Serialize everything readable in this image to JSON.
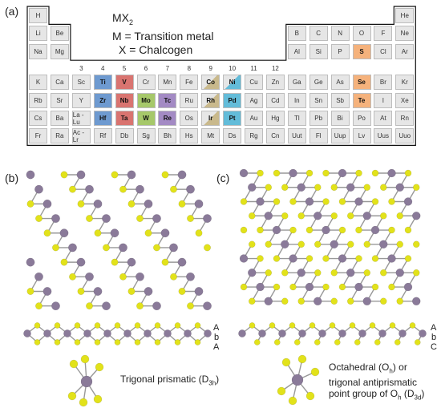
{
  "panels": {
    "a": "(a)",
    "b": "(b)",
    "c": "(c)"
  },
  "legend": {
    "formula": "MX",
    "formula_sub": "2",
    "metal": "M = Transition metal",
    "chalcogen": "X = Chalcogen"
  },
  "colors": {
    "cell_bg": "#e6e6e6",
    "group4": "#6e9ad0",
    "group5": "#d97470",
    "group6": "#a6c86a",
    "group7": "#a38ac4",
    "group9": "#c9b98c",
    "group10": "#63bcd9",
    "chalcogen": "#f5b27c",
    "metal_atom": "#8a7a99",
    "chalcogen_atom": "#e2e21a",
    "bond": "#999999"
  },
  "periodic_table": {
    "group_numbers": [
      "3",
      "4",
      "5",
      "6",
      "7",
      "8",
      "9",
      "10",
      "11",
      "12"
    ],
    "rows": [
      [
        {
          "s": "H",
          "c": 1
        },
        {
          "s": "He",
          "c": 18
        }
      ],
      [
        {
          "s": "Li",
          "c": 1
        },
        {
          "s": "Be",
          "c": 2
        },
        {
          "s": "B",
          "c": 13
        },
        {
          "s": "C",
          "c": 14
        },
        {
          "s": "N",
          "c": 15
        },
        {
          "s": "O",
          "c": 16
        },
        {
          "s": "F",
          "c": 17
        },
        {
          "s": "Ne",
          "c": 18
        }
      ],
      [
        {
          "s": "Na",
          "c": 1
        },
        {
          "s": "Mg",
          "c": 2
        },
        {
          "s": "Al",
          "c": 13
        },
        {
          "s": "Si",
          "c": 14
        },
        {
          "s": "P",
          "c": 15
        },
        {
          "s": "S",
          "c": 16,
          "t": "X"
        },
        {
          "s": "Cl",
          "c": 17
        },
        {
          "s": "Ar",
          "c": 18
        }
      ],
      [
        {
          "s": "K",
          "c": 1
        },
        {
          "s": "Ca",
          "c": 2
        },
        {
          "s": "Sc",
          "c": 3
        },
        {
          "s": "Ti",
          "c": 4,
          "t": "M"
        },
        {
          "s": "V",
          "c": 5,
          "t": "M"
        },
        {
          "s": "Cr",
          "c": 6
        },
        {
          "s": "Mn",
          "c": 7
        },
        {
          "s": "Fe",
          "c": 8
        },
        {
          "s": "Co",
          "c": 9,
          "t": "M",
          "split": true
        },
        {
          "s": "Ni",
          "c": 10,
          "t": "M",
          "split": true
        },
        {
          "s": "Cu",
          "c": 11
        },
        {
          "s": "Zn",
          "c": 12
        },
        {
          "s": "Ga",
          "c": 13
        },
        {
          "s": "Ge",
          "c": 14
        },
        {
          "s": "As",
          "c": 15
        },
        {
          "s": "Se",
          "c": 16,
          "t": "X"
        },
        {
          "s": "Br",
          "c": 17
        },
        {
          "s": "Kr",
          "c": 18
        }
      ],
      [
        {
          "s": "Rb",
          "c": 1
        },
        {
          "s": "Sr",
          "c": 2
        },
        {
          "s": "Y",
          "c": 3
        },
        {
          "s": "Zr",
          "c": 4,
          "t": "M"
        },
        {
          "s": "Nb",
          "c": 5,
          "t": "M"
        },
        {
          "s": "Mo",
          "c": 6,
          "t": "M"
        },
        {
          "s": "Tc",
          "c": 7,
          "t": "M"
        },
        {
          "s": "Ru",
          "c": 8
        },
        {
          "s": "Rh",
          "c": 9,
          "t": "M",
          "split": true
        },
        {
          "s": "Pd",
          "c": 10,
          "t": "M"
        },
        {
          "s": "Ag",
          "c": 11
        },
        {
          "s": "Cd",
          "c": 12
        },
        {
          "s": "In",
          "c": 13
        },
        {
          "s": "Sn",
          "c": 14
        },
        {
          "s": "Sb",
          "c": 15
        },
        {
          "s": "Te",
          "c": 16,
          "t": "X"
        },
        {
          "s": "I",
          "c": 17
        },
        {
          "s": "Xe",
          "c": 18
        }
      ],
      [
        {
          "s": "Cs",
          "c": 1
        },
        {
          "s": "Ba",
          "c": 2
        },
        {
          "s": "La - Lu",
          "c": 3
        },
        {
          "s": "Hf",
          "c": 4,
          "t": "M"
        },
        {
          "s": "Ta",
          "c": 5,
          "t": "M"
        },
        {
          "s": "W",
          "c": 6,
          "t": "M"
        },
        {
          "s": "Re",
          "c": 7,
          "t": "M"
        },
        {
          "s": "Os",
          "c": 8
        },
        {
          "s": "Ir",
          "c": 9,
          "t": "M",
          "split": true
        },
        {
          "s": "Pt",
          "c": 10,
          "t": "M"
        },
        {
          "s": "Au",
          "c": 11
        },
        {
          "s": "Hg",
          "c": 12
        },
        {
          "s": "Tl",
          "c": 13
        },
        {
          "s": "Pb",
          "c": 14
        },
        {
          "s": "Bi",
          "c": 15
        },
        {
          "s": "Po",
          "c": 16
        },
        {
          "s": "At",
          "c": 17
        },
        {
          "s": "Rn",
          "c": 18
        }
      ],
      [
        {
          "s": "Fr",
          "c": 1
        },
        {
          "s": "Ra",
          "c": 2
        },
        {
          "s": "Ac - Lr",
          "c": 3
        },
        {
          "s": "Rf",
          "c": 4
        },
        {
          "s": "Db",
          "c": 5
        },
        {
          "s": "Sg",
          "c": 6
        },
        {
          "s": "Bh",
          "c": 7
        },
        {
          "s": "Hs",
          "c": 8
        },
        {
          "s": "Mt",
          "c": 9
        },
        {
          "s": "Ds",
          "c": 10
        },
        {
          "s": "Rg",
          "c": 11
        },
        {
          "s": "Cn",
          "c": 12
        },
        {
          "s": "Uut",
          "c": 13
        },
        {
          "s": "Fl",
          "c": 14
        },
        {
          "s": "Uup",
          "c": 15
        },
        {
          "s": "Lv",
          "c": 16
        },
        {
          "s": "Uus",
          "c": 17
        },
        {
          "s": "Uuo",
          "c": 18
        }
      ]
    ]
  },
  "structure_b": {
    "stacking": [
      "A",
      "b",
      "A"
    ]
  },
  "structure_c": {
    "stacking": [
      "A",
      "b",
      "C"
    ]
  },
  "captions": {
    "b_text": "Trigonal prismatic (D",
    "b_sub": "3h",
    "b_end": ")",
    "c_line1_text": "Octahedral (O",
    "c_line1_sub": "h",
    "c_line1_end": ") or",
    "c_line2": "trigonal antiprismatic",
    "c_line3_text": "point group of O",
    "c_line3_sub": "h",
    "c_line3_mid": " (D",
    "c_line3_sub2": "3d",
    "c_line3_end": ")"
  }
}
